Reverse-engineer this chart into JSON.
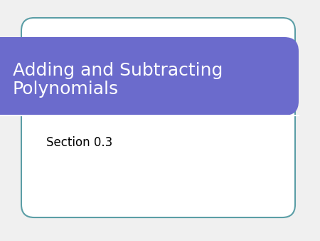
{
  "title_line1": "Adding and Subtracting",
  "title_line2": "Polynomials",
  "subtitle": "Section 0.3",
  "bg_color": "#f0f0f0",
  "outer_box_edge_color": "#5b9ea6",
  "outer_box_face_color": "#ffffff",
  "header_bg_color": "#6b6bcc",
  "header_text_color": "#ffffff",
  "subtitle_text_color": "#000000",
  "title_fontsize": 18,
  "subtitle_fontsize": 12,
  "fig_w": 4.5,
  "fig_h": 3.38
}
